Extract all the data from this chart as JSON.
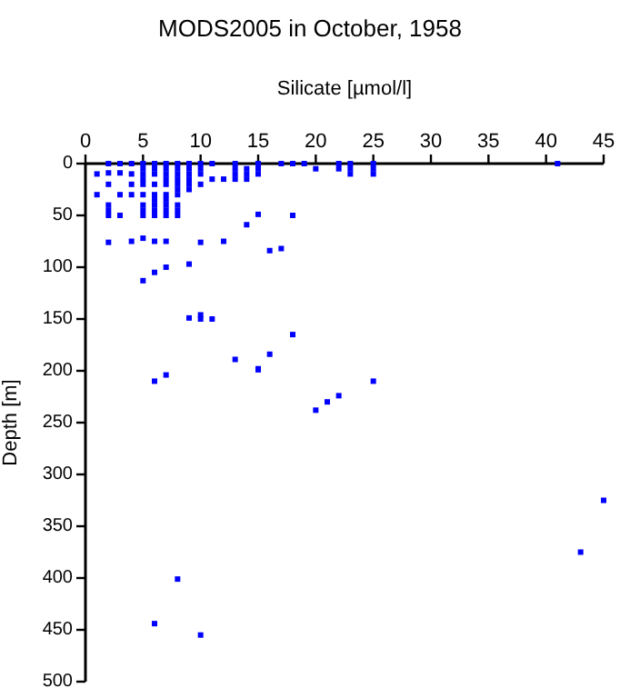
{
  "chart_data": {
    "type": "scatter",
    "title": "MODS2005 in October, 1958",
    "xlabel": "Silicate [µmol/l]",
    "ylabel": "Depth [m]",
    "xlim": [
      0,
      45
    ],
    "xticks": [
      0,
      5,
      10,
      15,
      20,
      25,
      30,
      35,
      40,
      45
    ],
    "ylim": [
      500,
      0
    ],
    "yticks": [
      0,
      50,
      100,
      150,
      200,
      250,
      300,
      350,
      400,
      450,
      500
    ],
    "grid": false,
    "marker": "square",
    "series": [
      {
        "color": "#0000ff",
        "x": [
          1,
          1,
          2,
          2,
          2,
          2,
          2,
          2,
          2,
          3,
          3,
          3,
          3,
          4,
          4,
          4,
          4,
          4,
          5,
          5,
          5,
          5,
          5,
          5,
          5,
          5,
          5,
          5,
          5,
          6,
          6,
          6,
          6,
          6,
          6,
          6,
          6,
          6,
          6,
          6,
          7,
          7,
          7,
          7,
          7,
          7,
          7,
          7,
          7,
          7,
          7,
          7,
          8,
          8,
          8,
          8,
          8,
          8,
          8,
          8,
          8,
          8,
          9,
          9,
          9,
          9,
          9,
          9,
          9,
          9,
          10,
          10,
          10,
          10,
          10,
          10,
          10,
          11,
          11,
          11,
          12,
          12,
          13,
          13,
          13,
          13,
          13,
          14,
          14,
          14,
          14,
          15,
          15,
          15,
          15,
          15,
          16,
          16,
          17,
          17,
          18,
          18,
          18,
          19,
          20,
          22,
          22,
          23,
          23,
          23,
          25,
          25,
          25,
          41,
          6,
          7,
          15,
          20,
          21,
          22,
          25,
          45,
          43,
          8,
          6,
          10
        ],
        "values": [
          10,
          30,
          0,
          9,
          20,
          40,
          45,
          50,
          76,
          0,
          9,
          30,
          50,
          0,
          10,
          20,
          30,
          75,
          0,
          5,
          10,
          15,
          20,
          30,
          40,
          45,
          50,
          72,
          113,
          0,
          5,
          10,
          20,
          30,
          35,
          40,
          45,
          50,
          75,
          105,
          0,
          5,
          10,
          15,
          20,
          30,
          35,
          40,
          45,
          50,
          75,
          100,
          0,
          5,
          10,
          15,
          20,
          25,
          30,
          40,
          45,
          50,
          0,
          5,
          10,
          15,
          20,
          25,
          97,
          149,
          0,
          5,
          10,
          20,
          76,
          146,
          150,
          0,
          15,
          150,
          15,
          75,
          0,
          5,
          10,
          15,
          189,
          5,
          10,
          15,
          59,
          0,
          5,
          10,
          49,
          199,
          84,
          184,
          0,
          82,
          0,
          50,
          165,
          0,
          5,
          0,
          5,
          0,
          5,
          10,
          0,
          5,
          10,
          0,
          210,
          204,
          198,
          238,
          230,
          224,
          210,
          325,
          375,
          401,
          444,
          455
        ]
      }
    ]
  }
}
